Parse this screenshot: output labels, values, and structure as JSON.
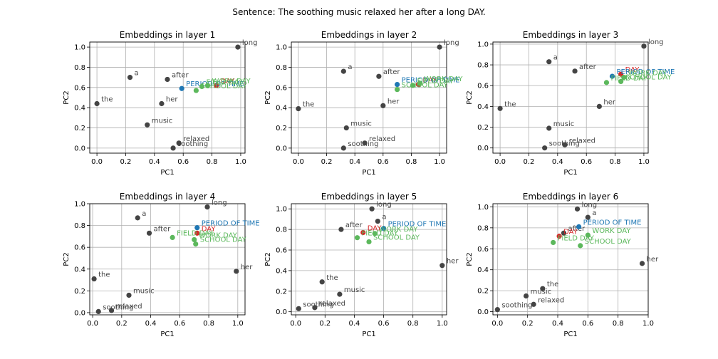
{
  "suptitle": "Sentence: The soothing music relaxed her after a long DAY.",
  "colors": {
    "word": "#444444",
    "target": "#d62728",
    "period": "#1f77b4",
    "day_type": "#5cb85c",
    "grid": "#b0b0b0"
  },
  "chart_data": [
    {
      "type": "scatter",
      "title": "Embeddings in layer 1",
      "xlabel": "PC1",
      "ylabel": "PC2",
      "xlim": [
        -0.05,
        1.03
      ],
      "ylim": [
        -0.05,
        1.05
      ],
      "xticks": [
        "0.0",
        "0.2",
        "0.4",
        "0.6",
        "0.8",
        "1.0"
      ],
      "xtick_values": [
        0,
        0.2,
        0.4,
        0.6,
        0.8,
        1.0
      ],
      "yticks": [
        "0.0",
        "0.2",
        "0.4",
        "0.6",
        "0.8",
        "1.0"
      ],
      "ytick_values": [
        0,
        0.2,
        0.4,
        0.6,
        0.8,
        1.0
      ],
      "grid": true,
      "points": [
        {
          "label": "the",
          "x": 0.0,
          "y": 0.44,
          "group": "word"
        },
        {
          "label": "a",
          "x": 0.23,
          "y": 0.7,
          "group": "word"
        },
        {
          "label": "after",
          "x": 0.49,
          "y": 0.68,
          "group": "word"
        },
        {
          "label": "her",
          "x": 0.45,
          "y": 0.44,
          "group": "word"
        },
        {
          "label": "music",
          "x": 0.35,
          "y": 0.23,
          "group": "word"
        },
        {
          "label": "relaxed",
          "x": 0.57,
          "y": 0.05,
          "group": "word"
        },
        {
          "label": "soothing",
          "x": 0.53,
          "y": 0.0,
          "group": "word"
        },
        {
          "label": "long",
          "x": 0.98,
          "y": 1.0,
          "group": "word"
        },
        {
          "label": "DAY",
          "x": 0.83,
          "y": 0.62,
          "group": "target"
        },
        {
          "label": "PERIOD OF TIME",
          "x": 0.59,
          "y": 0.59,
          "group": "period"
        },
        {
          "label": "WORK DAY",
          "x": 0.77,
          "y": 0.62,
          "group": "day_type"
        },
        {
          "label": "FIELD DAY",
          "x": 0.73,
          "y": 0.61,
          "group": "day_type"
        },
        {
          "label": "SCHOOL DAY",
          "x": 0.69,
          "y": 0.57,
          "group": "day_type"
        }
      ]
    },
    {
      "type": "scatter",
      "title": "Embeddings in layer 2",
      "xlabel": "PC1",
      "ylabel": "PC2",
      "xlim": [
        -0.05,
        1.05
      ],
      "ylim": [
        -0.05,
        1.05
      ],
      "xticks": [
        "0.0",
        "0.2",
        "0.4",
        "0.6",
        "0.8",
        "1.0"
      ],
      "xtick_values": [
        0,
        0.2,
        0.4,
        0.6,
        0.8,
        1.0
      ],
      "yticks": [
        "0.0",
        "0.2",
        "0.4",
        "0.6",
        "0.8",
        "1.0"
      ],
      "ytick_values": [
        0,
        0.2,
        0.4,
        0.6,
        0.8,
        1.0
      ],
      "grid": true,
      "points": [
        {
          "label": "the",
          "x": 0.0,
          "y": 0.39,
          "group": "word"
        },
        {
          "label": "a",
          "x": 0.32,
          "y": 0.76,
          "group": "word"
        },
        {
          "label": "after",
          "x": 0.57,
          "y": 0.71,
          "group": "word"
        },
        {
          "label": "her",
          "x": 0.6,
          "y": 0.42,
          "group": "word"
        },
        {
          "label": "music",
          "x": 0.34,
          "y": 0.2,
          "group": "word"
        },
        {
          "label": "relaxed",
          "x": 0.47,
          "y": 0.05,
          "group": "word"
        },
        {
          "label": "soothing",
          "x": 0.32,
          "y": 0.0,
          "group": "word"
        },
        {
          "label": "long",
          "x": 1.0,
          "y": 1.0,
          "group": "word"
        },
        {
          "label": "DAY",
          "x": 0.85,
          "y": 0.63,
          "group": "target"
        },
        {
          "label": "PERIOD OF TIME",
          "x": 0.7,
          "y": 0.63,
          "group": "period"
        },
        {
          "label": "WORK DAY",
          "x": 0.86,
          "y": 0.64,
          "group": "day_type"
        },
        {
          "label": "FIELD DAY",
          "x": 0.81,
          "y": 0.62,
          "group": "day_type"
        },
        {
          "label": "SCHOOL DAY",
          "x": 0.7,
          "y": 0.58,
          "group": "day_type"
        }
      ]
    },
    {
      "type": "scatter",
      "title": "Embeddings in layer 3",
      "xlabel": "PC1",
      "ylabel": "PC2",
      "xlim": [
        -0.05,
        1.03
      ],
      "ylim": [
        -0.05,
        1.02
      ],
      "xticks": [
        "0.0",
        "0.2",
        "0.4",
        "0.6",
        "0.8",
        "1.0"
      ],
      "xtick_values": [
        0,
        0.2,
        0.4,
        0.6,
        0.8,
        1.0
      ],
      "yticks": [
        "0.0",
        "0.2",
        "0.4",
        "0.6",
        "0.8",
        "1.0"
      ],
      "ytick_values": [
        0,
        0.2,
        0.4,
        0.6,
        0.8,
        1.0
      ],
      "grid": true,
      "points": [
        {
          "label": "the",
          "x": 0.0,
          "y": 0.38,
          "group": "word"
        },
        {
          "label": "a",
          "x": 0.34,
          "y": 0.83,
          "group": "word"
        },
        {
          "label": "after",
          "x": 0.52,
          "y": 0.74,
          "group": "word"
        },
        {
          "label": "her",
          "x": 0.69,
          "y": 0.4,
          "group": "word"
        },
        {
          "label": "music",
          "x": 0.34,
          "y": 0.19,
          "group": "word"
        },
        {
          "label": "relaxed",
          "x": 0.45,
          "y": 0.03,
          "group": "word"
        },
        {
          "label": "soothing",
          "x": 0.31,
          "y": 0.0,
          "group": "word"
        },
        {
          "label": "long",
          "x": 1.0,
          "y": 0.98,
          "group": "word"
        },
        {
          "label": "DAY",
          "x": 0.84,
          "y": 0.71,
          "group": "target"
        },
        {
          "label": "PERIOD OF TIME",
          "x": 0.78,
          "y": 0.69,
          "group": "period"
        },
        {
          "label": "WORK DAY",
          "x": 0.86,
          "y": 0.68,
          "group": "day_type"
        },
        {
          "label": "FIELD DAY",
          "x": 0.74,
          "y": 0.63,
          "group": "day_type"
        },
        {
          "label": "SCHOOL DAY",
          "x": 0.84,
          "y": 0.64,
          "group": "day_type"
        }
      ]
    },
    {
      "type": "scatter",
      "title": "Embeddings in layer 4",
      "xlabel": "PC1",
      "ylabel": "PC2",
      "xlim": [
        -0.02,
        1.05
      ],
      "ylim": [
        -0.02,
        1.0
      ],
      "xticks": [
        "0.0",
        "0.2",
        "0.4",
        "0.6",
        "0.8",
        "1.0"
      ],
      "xtick_values": [
        0,
        0.2,
        0.4,
        0.6,
        0.8,
        1.0
      ],
      "yticks": [
        "0.0",
        "0.2",
        "0.4",
        "0.6",
        "0.8",
        "1.0"
      ],
      "ytick_values": [
        0,
        0.2,
        0.4,
        0.6,
        0.8,
        1.0
      ],
      "grid": true,
      "points": [
        {
          "label": "the",
          "x": 0.01,
          "y": 0.31,
          "group": "word"
        },
        {
          "label": "a",
          "x": 0.31,
          "y": 0.87,
          "group": "word"
        },
        {
          "label": "after",
          "x": 0.39,
          "y": 0.73,
          "group": "word"
        },
        {
          "label": "her",
          "x": 0.99,
          "y": 0.38,
          "group": "word"
        },
        {
          "label": "music",
          "x": 0.25,
          "y": 0.16,
          "group": "word"
        },
        {
          "label": "relaxed",
          "x": 0.13,
          "y": 0.02,
          "group": "word"
        },
        {
          "label": "soothing",
          "x": 0.04,
          "y": 0.01,
          "group": "word"
        },
        {
          "label": "long",
          "x": 0.79,
          "y": 0.97,
          "group": "word"
        },
        {
          "label": "DAY",
          "x": 0.72,
          "y": 0.73,
          "group": "target"
        },
        {
          "label": "PERIOD OF TIME",
          "x": 0.72,
          "y": 0.78,
          "group": "period"
        },
        {
          "label": "WORK DAY",
          "x": 0.7,
          "y": 0.67,
          "group": "day_type"
        },
        {
          "label": "FIELD DAY",
          "x": 0.55,
          "y": 0.69,
          "group": "day_type"
        },
        {
          "label": "SCHOOL DAY",
          "x": 0.71,
          "y": 0.63,
          "group": "day_type"
        }
      ]
    },
    {
      "type": "scatter",
      "title": "Embeddings in layer 5",
      "xlabel": "PC1",
      "ylabel": "PC2",
      "xlim": [
        -0.03,
        1.03
      ],
      "ylim": [
        -0.03,
        1.05
      ],
      "xticks": [
        "0.0",
        "0.2",
        "0.4",
        "0.6",
        "0.8",
        "1.0"
      ],
      "xtick_values": [
        0,
        0.2,
        0.4,
        0.6,
        0.8,
        1.0
      ],
      "yticks": [
        "0.0",
        "0.2",
        "0.4",
        "0.6",
        "0.8",
        "1.0"
      ],
      "ytick_values": [
        0,
        0.2,
        0.4,
        0.6,
        0.8,
        1.0
      ],
      "grid": true,
      "points": [
        {
          "label": "the",
          "x": 0.18,
          "y": 0.29,
          "group": "word"
        },
        {
          "label": "a",
          "x": 0.56,
          "y": 0.88,
          "group": "word"
        },
        {
          "label": "after",
          "x": 0.31,
          "y": 0.8,
          "group": "word"
        },
        {
          "label": "her",
          "x": 1.0,
          "y": 0.45,
          "group": "word"
        },
        {
          "label": "music",
          "x": 0.3,
          "y": 0.17,
          "group": "word"
        },
        {
          "label": "relaxed",
          "x": 0.13,
          "y": 0.04,
          "group": "word"
        },
        {
          "label": "soothing",
          "x": 0.02,
          "y": 0.03,
          "group": "word"
        },
        {
          "label": "long",
          "x": 0.52,
          "y": 1.0,
          "group": "word"
        },
        {
          "label": "DAY",
          "x": 0.46,
          "y": 0.77,
          "group": "target"
        },
        {
          "label": "PERIOD OF TIME",
          "x": 0.6,
          "y": 0.81,
          "group": "period"
        },
        {
          "label": "WORK DAY",
          "x": 0.54,
          "y": 0.76,
          "group": "day_type"
        },
        {
          "label": "FIELD DAY",
          "x": 0.42,
          "y": 0.72,
          "group": "day_type"
        },
        {
          "label": "SCHOOL DAY",
          "x": 0.5,
          "y": 0.68,
          "group": "day_type"
        }
      ]
    },
    {
      "type": "scatter",
      "title": "Embeddings in layer 6",
      "xlabel": "PC1",
      "ylabel": "PC2",
      "xlim": [
        -0.03,
        1.0
      ],
      "ylim": [
        -0.03,
        1.03
      ],
      "xticks": [
        "0.0",
        "0.2",
        "0.4",
        "0.6",
        "0.8",
        "1.0"
      ],
      "xtick_values": [
        0,
        0.2,
        0.4,
        0.6,
        0.8,
        1.0
      ],
      "yticks": [
        "0.0",
        "0.2",
        "0.4",
        "0.6",
        "0.8",
        "1.0"
      ],
      "ytick_values": [
        0,
        0.2,
        0.4,
        0.6,
        0.8,
        1.0
      ],
      "grid": true,
      "points": [
        {
          "label": "the",
          "x": 0.3,
          "y": 0.22,
          "group": "word"
        },
        {
          "label": "a",
          "x": 0.6,
          "y": 0.9,
          "group": "word"
        },
        {
          "label": "after",
          "x": 0.44,
          "y": 0.75,
          "group": "word"
        },
        {
          "label": "her",
          "x": 0.96,
          "y": 0.46,
          "group": "word"
        },
        {
          "label": "music",
          "x": 0.19,
          "y": 0.15,
          "group": "word"
        },
        {
          "label": "relaxed",
          "x": 0.24,
          "y": 0.07,
          "group": "word"
        },
        {
          "label": "soothing",
          "x": 0.0,
          "y": 0.02,
          "group": "word"
        },
        {
          "label": "long",
          "x": 0.53,
          "y": 0.98,
          "group": "word"
        },
        {
          "label": "DAY",
          "x": 0.41,
          "y": 0.72,
          "group": "target"
        },
        {
          "label": "PERIOD OF TIME",
          "x": 0.54,
          "y": 0.81,
          "group": "period"
        },
        {
          "label": "WORK DAY",
          "x": 0.6,
          "y": 0.73,
          "group": "day_type"
        },
        {
          "label": "FIELD DAY",
          "x": 0.37,
          "y": 0.66,
          "group": "day_type"
        },
        {
          "label": "SCHOOL DAY",
          "x": 0.55,
          "y": 0.63,
          "group": "day_type"
        }
      ]
    }
  ]
}
